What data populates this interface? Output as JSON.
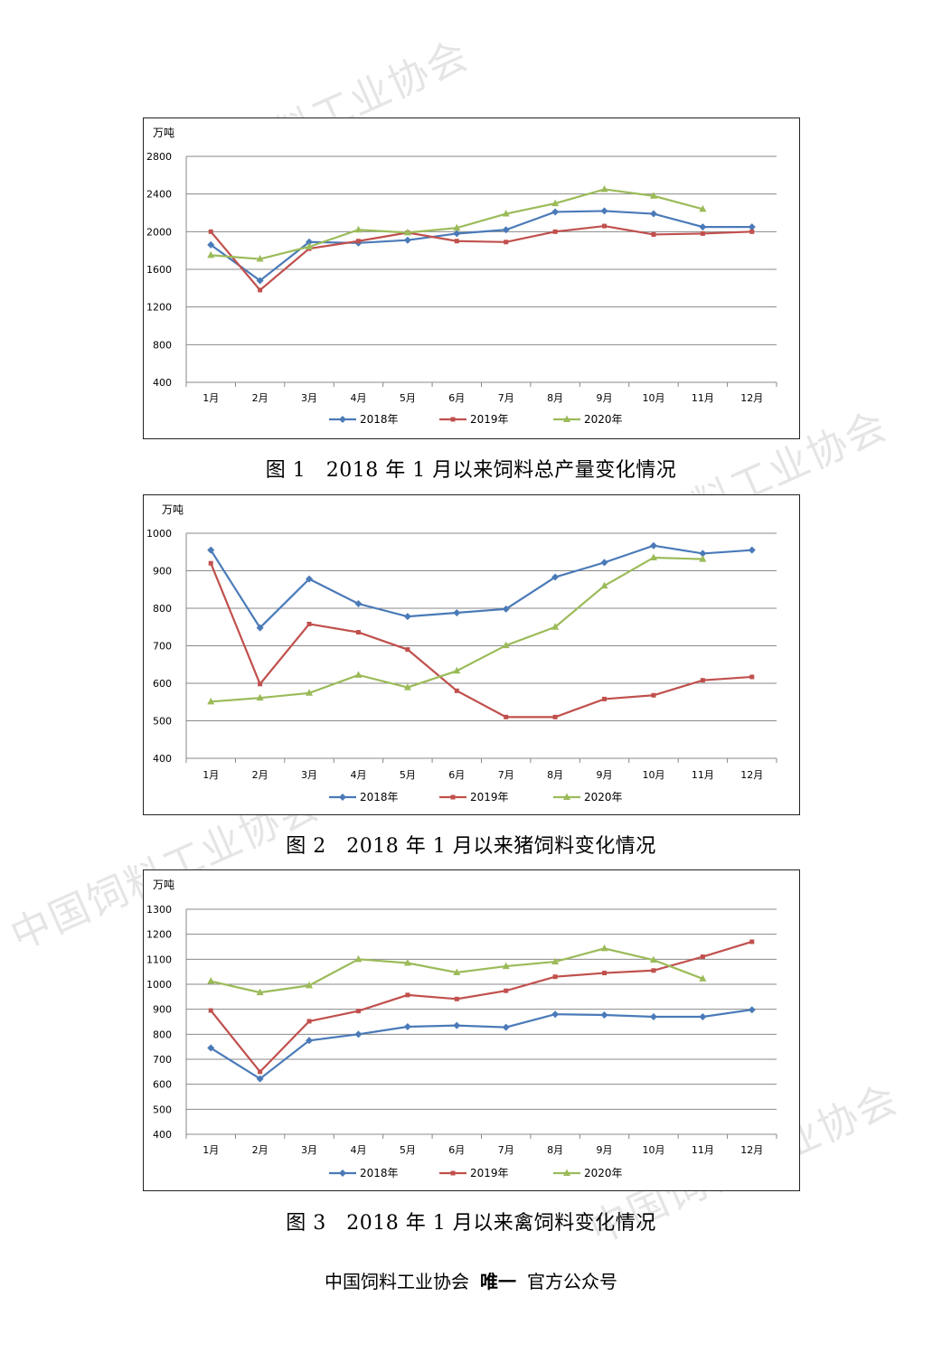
{
  "chart_data": [
    {
      "type": "line",
      "title": "图 1　2018 年 1 月以来饲料总产量变化情况",
      "unit": "万吨",
      "categories": [
        "1月",
        "2月",
        "3月",
        "4月",
        "5月",
        "6月",
        "7月",
        "8月",
        "9月",
        "10月",
        "11月",
        "12月"
      ],
      "ylim": [
        400,
        2800
      ],
      "yticks": [
        400,
        800,
        1200,
        1600,
        2000,
        2400,
        2800
      ],
      "grid": true,
      "legend_position": "bottom",
      "series": [
        {
          "name": "2018年",
          "color": "#4a7ab8",
          "marker": "diamond",
          "values": [
            1860,
            1480,
            1890,
            1880,
            1910,
            1980,
            2020,
            2210,
            2220,
            2190,
            2050,
            2050
          ]
        },
        {
          "name": "2019年",
          "color": "#c0504d",
          "marker": "square",
          "values": [
            2000,
            1380,
            1820,
            1900,
            1990,
            1900,
            1890,
            2000,
            2060,
            1970,
            1980,
            2000
          ]
        },
        {
          "name": "2020年",
          "color": "#9bbb59",
          "marker": "triangle",
          "values": [
            1750,
            1710,
            1840,
            2020,
            1990,
            2040,
            2190,
            2300,
            2450,
            2380,
            2240,
            null
          ]
        }
      ]
    },
    {
      "type": "line",
      "title": "图 2　2018 年 1 月以来猪饲料变化情况",
      "unit": "万吨",
      "categories": [
        "1月",
        "2月",
        "3月",
        "4月",
        "5月",
        "6月",
        "7月",
        "8月",
        "9月",
        "10月",
        "11月",
        "12月"
      ],
      "ylim": [
        400,
        1000
      ],
      "yticks": [
        400,
        500,
        600,
        700,
        800,
        900,
        1000
      ],
      "grid": true,
      "legend_position": "bottom",
      "series": [
        {
          "name": "2018年",
          "color": "#4a7ab8",
          "marker": "diamond",
          "values": [
            955,
            748,
            878,
            812,
            778,
            788,
            798,
            883,
            922,
            967,
            946,
            955
          ]
        },
        {
          "name": "2019年",
          "color": "#c0504d",
          "marker": "square",
          "values": [
            920,
            598,
            758,
            736,
            690,
            580,
            510,
            510,
            558,
            568,
            608,
            617
          ]
        },
        {
          "name": "2020年",
          "color": "#9bbb59",
          "marker": "triangle",
          "values": [
            551,
            561,
            574,
            622,
            589,
            633,
            701,
            750,
            860,
            935,
            931,
            null
          ]
        }
      ]
    },
    {
      "type": "line",
      "title": "图 3　2018 年 1 月以来禽饲料变化情况",
      "unit": "万吨",
      "categories": [
        "1月",
        "2月",
        "3月",
        "4月",
        "5月",
        "6月",
        "7月",
        "8月",
        "9月",
        "10月",
        "11月",
        "12月"
      ],
      "ylim": [
        400,
        1300
      ],
      "yticks": [
        400,
        500,
        600,
        700,
        800,
        900,
        1000,
        1100,
        1200,
        1300
      ],
      "grid": true,
      "legend_position": "bottom",
      "series": [
        {
          "name": "2018年",
          "color": "#4a7ab8",
          "marker": "diamond",
          "values": [
            745,
            622,
            775,
            800,
            830,
            835,
            828,
            880,
            877,
            870,
            870,
            898
          ]
        },
        {
          "name": "2019年",
          "color": "#c0504d",
          "marker": "square",
          "values": [
            895,
            650,
            852,
            893,
            957,
            941,
            974,
            1030,
            1045,
            1055,
            1110,
            1170
          ]
        },
        {
          "name": "2020年",
          "color": "#9bbb59",
          "marker": "triangle",
          "values": [
            1012,
            967,
            995,
            1100,
            1085,
            1047,
            1072,
            1090,
            1143,
            1097,
            1022,
            null
          ]
        }
      ]
    }
  ],
  "captions": {
    "fig1": "图 1　2018 年 1 月以来饲料总产量变化情况",
    "fig2": "图 2　2018 年 1 月以来猪饲料变化情况",
    "fig3": "图 3　2018 年 1 月以来禽饲料变化情况"
  },
  "watermark_text": "中国饲料工业协会",
  "footer": {
    "org": "中国饲料工业协会",
    "emphasis": "唯一",
    "suffix": "官方公众号"
  }
}
